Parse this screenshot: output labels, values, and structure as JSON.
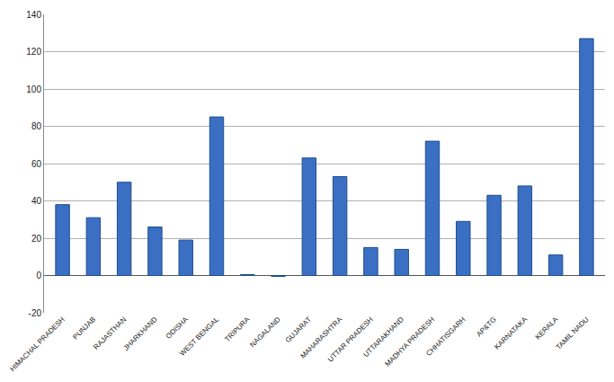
{
  "chart_data": {
    "type": "bar",
    "categories": [
      "HIMACHAL PRADESH",
      "PUNJAB",
      "RAJASTHAN",
      "JHARKHAND",
      "ODISHA",
      "WEST BENGAL",
      "TRIPURA",
      "NAGALAND",
      "GUJARAT",
      "MAHARASHTRA",
      "UTTAR PRADESH",
      "UTTARAKHAND",
      "MADHYA PRADESH",
      "CHHATISGARH",
      "AP&TG",
      "KARNATAKA",
      "KERALA",
      "TAMIL NADU"
    ],
    "values": [
      38,
      31,
      50,
      26,
      19,
      85,
      0.5,
      -0.5,
      63,
      53,
      15,
      14,
      72,
      29,
      43,
      48,
      11,
      127
    ],
    "color": "#3a6fc4",
    "ylim": [
      -20,
      140
    ],
    "yticks": [
      -20,
      0,
      20,
      40,
      60,
      80,
      100,
      120,
      140
    ],
    "grid": true
  }
}
